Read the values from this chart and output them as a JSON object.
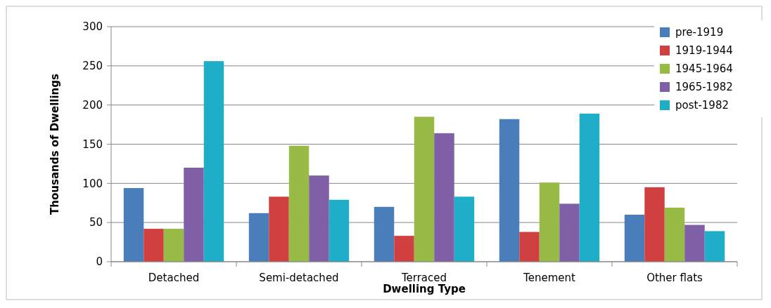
{
  "chart_data": {
    "type": "bar",
    "xlabel": "Dwelling Type",
    "ylabel": "Thousands of Dwellings",
    "categories": [
      "Detached",
      "Semi-detached",
      "Terraced",
      "Tenement",
      "Other flats"
    ],
    "series": [
      {
        "name": "pre-1919",
        "color": "#4a7ebb",
        "values": [
          94,
          62,
          70,
          182,
          60
        ]
      },
      {
        "name": "1919-1944",
        "color": "#d04040",
        "values": [
          42,
          83,
          33,
          38,
          95
        ]
      },
      {
        "name": "1945-1964",
        "color": "#98bb45",
        "values": [
          42,
          148,
          185,
          101,
          69
        ]
      },
      {
        "name": "1965-1982",
        "color": "#7f5fa6",
        "values": [
          120,
          110,
          164,
          74,
          47
        ]
      },
      {
        "name": "post-1982",
        "color": "#1eaec7",
        "values": [
          256,
          79,
          83,
          189,
          39
        ]
      }
    ],
    "ylim": [
      0,
      300
    ],
    "yticks": [
      0,
      50,
      100,
      150,
      200,
      250,
      300
    ],
    "grid": "y",
    "legend": "top right"
  }
}
